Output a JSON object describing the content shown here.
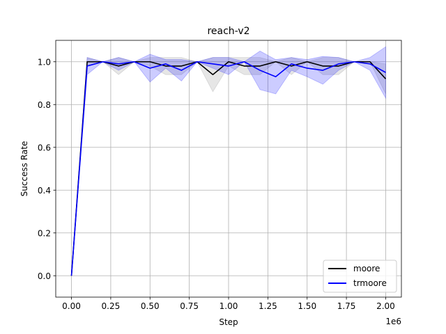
{
  "chart_data": {
    "type": "line",
    "title": "reach-v2",
    "xlabel": "Step",
    "ylabel": "Success Rate",
    "x_offset_label": "1e6",
    "xlim": [
      -0.1,
      2.1
    ],
    "ylim": [
      -0.1,
      1.1
    ],
    "xticks": [
      0.0,
      0.25,
      0.5,
      0.75,
      1.0,
      1.25,
      1.5,
      1.75,
      2.0
    ],
    "xtick_labels": [
      "0.00",
      "0.25",
      "0.50",
      "0.75",
      "1.00",
      "1.25",
      "1.50",
      "1.75",
      "2.00"
    ],
    "yticks": [
      0.0,
      0.2,
      0.4,
      0.6,
      0.8,
      1.0
    ],
    "ytick_labels": [
      "0.0",
      "0.2",
      "0.4",
      "0.6",
      "0.8",
      "1.0"
    ],
    "grid": true,
    "legend_position": "lower-right",
    "x": [
      0.0,
      0.1,
      0.2,
      0.3,
      0.4,
      0.5,
      0.6,
      0.7,
      0.8,
      0.9,
      1.0,
      1.1,
      1.2,
      1.3,
      1.4,
      1.5,
      1.6,
      1.7,
      1.8,
      1.9,
      2.0
    ],
    "series": [
      {
        "name": "moore",
        "color": "#000000",
        "band_color": "#808080",
        "values": [
          0.0,
          1.0,
          1.0,
          0.98,
          1.0,
          1.0,
          0.98,
          0.98,
          1.0,
          0.94,
          1.0,
          0.98,
          0.98,
          1.0,
          0.98,
          1.0,
          0.98,
          0.98,
          1.0,
          1.0,
          0.92
        ],
        "lower": [
          0.0,
          0.98,
          1.0,
          0.94,
          1.0,
          0.98,
          0.94,
          0.94,
          1.0,
          0.86,
          0.98,
          0.94,
          0.94,
          1.0,
          0.94,
          1.0,
          0.94,
          0.94,
          1.0,
          1.0,
          0.85
        ],
        "upper": [
          0.0,
          1.02,
          1.0,
          1.02,
          1.0,
          1.02,
          1.02,
          1.02,
          1.0,
          1.02,
          1.02,
          1.02,
          1.02,
          1.0,
          1.02,
          1.0,
          1.02,
          1.02,
          1.0,
          1.0,
          0.99
        ]
      },
      {
        "name": "trmoore",
        "color": "#0000ff",
        "band_color": "#0000ff",
        "values": [
          0.0,
          0.98,
          1.0,
          0.99,
          1.0,
          0.97,
          0.99,
          0.96,
          1.0,
          0.99,
          0.98,
          1.0,
          0.96,
          0.93,
          0.99,
          0.97,
          0.96,
          0.99,
          1.0,
          0.99,
          0.95
        ],
        "lower": [
          0.0,
          0.94,
          1.0,
          0.96,
          1.0,
          0.905,
          0.97,
          0.91,
          1.0,
          0.97,
          0.94,
          1.0,
          0.87,
          0.85,
          0.96,
          0.93,
          0.895,
          0.96,
          1.0,
          0.96,
          0.83
        ],
        "upper": [
          0.0,
          1.02,
          1.0,
          1.02,
          1.0,
          1.035,
          1.01,
          1.01,
          1.0,
          1.02,
          1.02,
          1.0,
          1.05,
          1.01,
          1.02,
          1.01,
          1.025,
          1.02,
          1.0,
          1.02,
          1.07
        ]
      }
    ]
  }
}
